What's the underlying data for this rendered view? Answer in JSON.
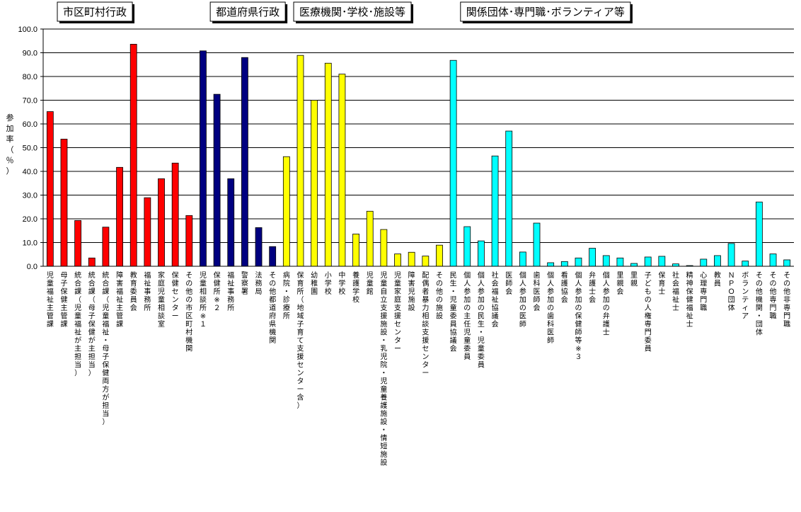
{
  "colors": {
    "gyosei": "#ff0000",
    "pref": "#000080",
    "iryo": "#ffff00",
    "kankei": "#00ffff",
    "gridline": "#000000",
    "bar_outline": "#000000"
  },
  "chart_data": {
    "type": "bar",
    "title": "",
    "xlabel": "",
    "ylabel": "参加率（％）",
    "ylim": [
      0,
      100
    ],
    "yticks": [
      "0.0",
      "10.0",
      "20.0",
      "30.0",
      "40.0",
      "50.0",
      "60.0",
      "70.0",
      "80.0",
      "90.0",
      "100.0"
    ],
    "grid": true,
    "groups": [
      {
        "name": "市区町村行政",
        "color_key": "gyosei",
        "start": 0,
        "end": 10
      },
      {
        "name": "都道府県行政",
        "color_key": "pref",
        "start": 11,
        "end": 16
      },
      {
        "name": "医療機関･学校･施設等",
        "color_key": "iryo",
        "start": 17,
        "end": 28
      },
      {
        "name": "関係団体･専門職･ボランティア等",
        "color_key": "kankei",
        "start": 29,
        "end": 53
      }
    ],
    "categories": [
      "児童福祉主管課",
      "母子保健主管課",
      "統合課（児童福祉が主担当）",
      "統合課（母子保健が主担当）",
      "統合課（児童福祉・母子保健両方が担当）",
      "障害福祉主管課",
      "教育委員会",
      "福祉事務所",
      "家庭児童相談室",
      "保健センター",
      "その他の市区町村機関",
      "児童相談所※１",
      "保健所※２",
      "福祉事務所",
      "警察署",
      "法務局",
      "その他都道府県機関",
      "病院・診療所",
      "保育所（地域子育て支援センター含）",
      "幼稚園",
      "小学校",
      "中学校",
      "養護学校",
      "児童館",
      "児童自立支援施設・乳児院・児童養護施設・情短施設",
      "児童家庭支援センター",
      "障害児施設",
      "配偶者暴力相談支援センター",
      "その他の施設",
      "民生・児童委員協議会",
      "個人参加の主任児童委員",
      "個人参加の民生・児童委員",
      "社会福祉協議会",
      "医師会",
      "個人参加の医師",
      "歯科医師会",
      "個人参加の歯科医師",
      "看護協会",
      "個人参加の保健師等※３",
      "弁護士会",
      "個人参加の弁護士",
      "里親会",
      "里親",
      "子どもの人権専門委員",
      "保育士",
      "社会福祉士",
      "精神保健福祉士",
      "心理専門職",
      "教員",
      "ＮＰＯ団体",
      "ボランティア",
      "その他機関・団体",
      "その他専門職",
      "その他非専門職"
    ],
    "values": [
      65.2,
      53.6,
      19.3,
      3.5,
      16.5,
      41.7,
      93.6,
      28.9,
      36.9,
      43.5,
      21.4,
      90.8,
      72.5,
      36.9,
      88.0,
      16.3,
      8.3,
      46.2,
      88.9,
      70.0,
      85.6,
      81.0,
      13.6,
      23.2,
      15.5,
      5.2,
      5.9,
      4.3,
      8.9,
      86.8,
      16.7,
      10.7,
      46.5,
      57.0,
      6.0,
      18.2,
      1.5,
      2.0,
      3.5,
      7.6,
      4.5,
      3.5,
      1.2,
      3.9,
      4.2,
      1.0,
      0.3,
      3.0,
      4.5,
      9.6,
      2.2,
      27.1,
      5.2,
      2.7
    ]
  }
}
